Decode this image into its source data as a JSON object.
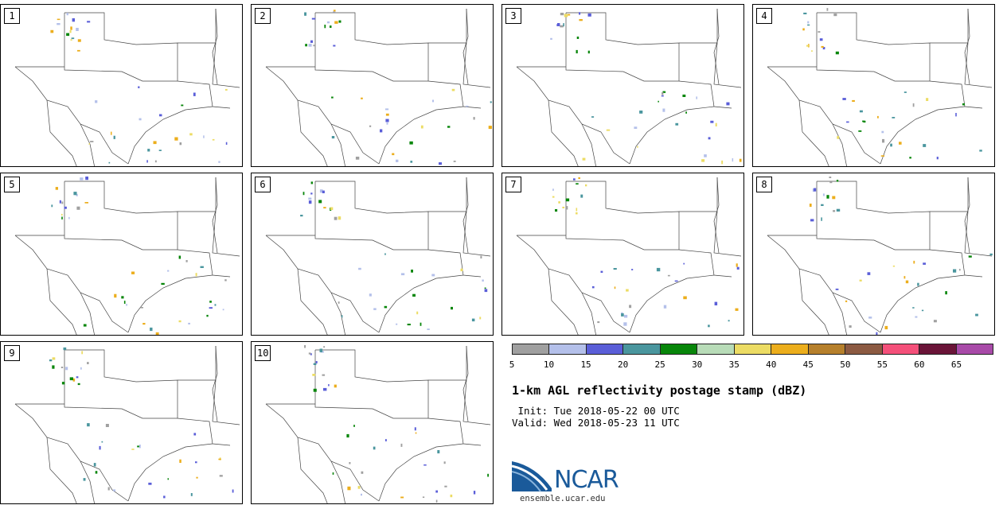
{
  "panels": [
    {
      "label": "1"
    },
    {
      "label": "2"
    },
    {
      "label": "3"
    },
    {
      "label": "4"
    },
    {
      "label": "5"
    },
    {
      "label": "6"
    },
    {
      "label": "7"
    },
    {
      "label": "8"
    },
    {
      "label": "9"
    },
    {
      "label": "10"
    }
  ],
  "colorbar": {
    "colors": [
      "#a0a0a0",
      "#b4c0ea",
      "#5a5ed8",
      "#4a969e",
      "#08860a",
      "#b8dcb8",
      "#ecdc64",
      "#ecae1c",
      "#b6802c",
      "#8c5a42",
      "#f4507a",
      "#6a1438",
      "#a84aa8"
    ],
    "tick_labels": [
      "5",
      "10",
      "15",
      "20",
      "25",
      "30",
      "35",
      "40",
      "45",
      "50",
      "55",
      "60",
      "65"
    ]
  },
  "title": "1-km AGL reflectivity postage stamp (dBZ)",
  "init_line": " Init: Tue 2018-05-22 00 UTC",
  "valid_line": "Valid: Wed 2018-05-23 11 UTC",
  "logo": {
    "wordmark": "NCAR",
    "url": "ensemble.ucar.edu",
    "color": "#1a5a9a"
  }
}
